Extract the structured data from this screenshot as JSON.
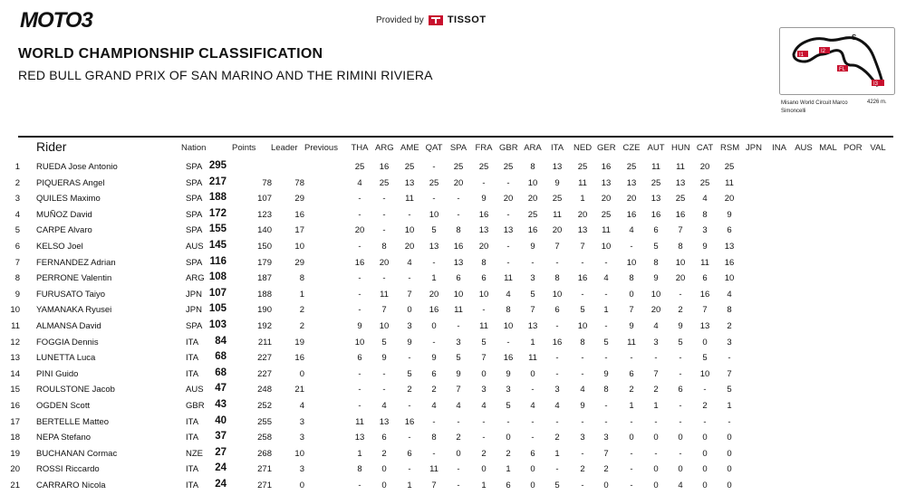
{
  "header": {
    "logo_text": "MOTO3",
    "provided_by": "Provided by",
    "sponsor": "TISSOT",
    "title": "WORLD CHAMPIONSHIP CLASSIFICATION",
    "subtitle": "RED BULL GRAND PRIX OF SAN MARINO AND THE RIMINI RIVIERA"
  },
  "track": {
    "name": "Misano World Circuit Marco Simoncelli",
    "length": "4226 m.",
    "sector_labels": [
      "S",
      "I1",
      "I2",
      "FL",
      "I3"
    ]
  },
  "table": {
    "columns": {
      "rider": "Rider",
      "nation": "Nation",
      "points": "Points",
      "leader": "Leader",
      "previous": "Previous"
    },
    "races": [
      "THA",
      "ARG",
      "AME",
      "QAT",
      "SPA",
      "FRA",
      "GBR",
      "ARA",
      "ITA",
      "NED",
      "GER",
      "CZE",
      "AUT",
      "HUN",
      "CAT",
      "RSM",
      "JPN",
      "INA",
      "AUS",
      "MAL",
      "POR",
      "VAL"
    ],
    "rows": [
      {
        "pos": "1",
        "rider": "RUEDA Jose Antonio",
        "nation": "SPA",
        "points": "295",
        "leader": "",
        "previous": "",
        "results": [
          "25",
          "16",
          "25",
          "-",
          "25",
          "25",
          "25",
          "8",
          "13",
          "25",
          "16",
          "25",
          "11",
          "11",
          "20",
          "25"
        ]
      },
      {
        "pos": "2",
        "rider": "PIQUERAS Angel",
        "nation": "SPA",
        "points": "217",
        "leader": "78",
        "previous": "78",
        "results": [
          "4",
          "25",
          "13",
          "25",
          "20",
          "-",
          "-",
          "10",
          "9",
          "11",
          "13",
          "13",
          "25",
          "13",
          "25",
          "11"
        ]
      },
      {
        "pos": "3",
        "rider": "QUILES Maximo",
        "nation": "SPA",
        "points": "188",
        "leader": "107",
        "previous": "29",
        "results": [
          "-",
          "-",
          "11",
          "-",
          "-",
          "9",
          "20",
          "20",
          "25",
          "1",
          "20",
          "20",
          "13",
          "25",
          "4",
          "20"
        ]
      },
      {
        "pos": "4",
        "rider": "MUÑOZ David",
        "nation": "SPA",
        "points": "172",
        "leader": "123",
        "previous": "16",
        "results": [
          "-",
          "-",
          "-",
          "10",
          "-",
          "16",
          "-",
          "25",
          "11",
          "20",
          "25",
          "16",
          "16",
          "16",
          "8",
          "9"
        ]
      },
      {
        "pos": "5",
        "rider": "CARPE Alvaro",
        "nation": "SPA",
        "points": "155",
        "leader": "140",
        "previous": "17",
        "results": [
          "20",
          "-",
          "10",
          "5",
          "8",
          "13",
          "13",
          "16",
          "20",
          "13",
          "11",
          "4",
          "6",
          "7",
          "3",
          "6"
        ]
      },
      {
        "pos": "6",
        "rider": "KELSO Joel",
        "nation": "AUS",
        "points": "145",
        "leader": "150",
        "previous": "10",
        "results": [
          "-",
          "8",
          "20",
          "13",
          "16",
          "20",
          "-",
          "9",
          "7",
          "7",
          "10",
          "-",
          "5",
          "8",
          "9",
          "13"
        ]
      },
      {
        "pos": "7",
        "rider": "FERNANDEZ Adrian",
        "nation": "SPA",
        "points": "116",
        "leader": "179",
        "previous": "29",
        "results": [
          "16",
          "20",
          "4",
          "-",
          "13",
          "8",
          "-",
          "-",
          "-",
          "-",
          "-",
          "10",
          "8",
          "10",
          "11",
          "16"
        ]
      },
      {
        "pos": "8",
        "rider": "PERRONE Valentin",
        "nation": "ARG",
        "points": "108",
        "leader": "187",
        "previous": "8",
        "results": [
          "-",
          "-",
          "-",
          "1",
          "6",
          "6",
          "11",
          "3",
          "8",
          "16",
          "4",
          "8",
          "9",
          "20",
          "6",
          "10"
        ]
      },
      {
        "pos": "9",
        "rider": "FURUSATO Taiyo",
        "nation": "JPN",
        "points": "107",
        "leader": "188",
        "previous": "1",
        "results": [
          "-",
          "11",
          "7",
          "20",
          "10",
          "10",
          "4",
          "5",
          "10",
          "-",
          "-",
          "0",
          "10",
          "-",
          "16",
          "4"
        ]
      },
      {
        "pos": "10",
        "rider": "YAMANAKA Ryusei",
        "nation": "JPN",
        "points": "105",
        "leader": "190",
        "previous": "2",
        "results": [
          "-",
          "7",
          "0",
          "16",
          "11",
          "-",
          "8",
          "7",
          "6",
          "5",
          "1",
          "7",
          "20",
          "2",
          "7",
          "8"
        ]
      },
      {
        "pos": "11",
        "rider": "ALMANSA David",
        "nation": "SPA",
        "points": "103",
        "leader": "192",
        "previous": "2",
        "results": [
          "9",
          "10",
          "3",
          "0",
          "-",
          "11",
          "10",
          "13",
          "-",
          "10",
          "-",
          "9",
          "4",
          "9",
          "13",
          "2"
        ]
      },
      {
        "pos": "12",
        "rider": "FOGGIA Dennis",
        "nation": "ITA",
        "points": "84",
        "leader": "211",
        "previous": "19",
        "results": [
          "10",
          "5",
          "9",
          "-",
          "3",
          "5",
          "-",
          "1",
          "16",
          "8",
          "5",
          "11",
          "3",
          "5",
          "0",
          "3"
        ]
      },
      {
        "pos": "13",
        "rider": "LUNETTA Luca",
        "nation": "ITA",
        "points": "68",
        "leader": "227",
        "previous": "16",
        "results": [
          "6",
          "9",
          "-",
          "9",
          "5",
          "7",
          "16",
          "11",
          "-",
          "-",
          "-",
          "-",
          "-",
          "-",
          "5",
          "-"
        ]
      },
      {
        "pos": "14",
        "rider": "PINI Guido",
        "nation": "ITA",
        "points": "68",
        "leader": "227",
        "previous": "0",
        "results": [
          "-",
          "-",
          "5",
          "6",
          "9",
          "0",
          "9",
          "0",
          "-",
          "-",
          "9",
          "6",
          "7",
          "-",
          "10",
          "7"
        ]
      },
      {
        "pos": "15",
        "rider": "ROULSTONE Jacob",
        "nation": "AUS",
        "points": "47",
        "leader": "248",
        "previous": "21",
        "results": [
          "-",
          "-",
          "2",
          "2",
          "7",
          "3",
          "3",
          "-",
          "3",
          "4",
          "8",
          "2",
          "2",
          "6",
          "-",
          "5"
        ]
      },
      {
        "pos": "16",
        "rider": "OGDEN Scott",
        "nation": "GBR",
        "points": "43",
        "leader": "252",
        "previous": "4",
        "results": [
          "-",
          "4",
          "-",
          "4",
          "4",
          "4",
          "5",
          "4",
          "4",
          "9",
          "-",
          "1",
          "1",
          "-",
          "2",
          "1"
        ]
      },
      {
        "pos": "17",
        "rider": "BERTELLE Matteo",
        "nation": "ITA",
        "points": "40",
        "leader": "255",
        "previous": "3",
        "results": [
          "11",
          "13",
          "16",
          "-",
          "-",
          "-",
          "-",
          "-",
          "-",
          "-",
          "-",
          "-",
          "-",
          "-",
          "-",
          "-"
        ]
      },
      {
        "pos": "18",
        "rider": "NEPA Stefano",
        "nation": "ITA",
        "points": "37",
        "leader": "258",
        "previous": "3",
        "results": [
          "13",
          "6",
          "-",
          "8",
          "2",
          "-",
          "0",
          "-",
          "2",
          "3",
          "3",
          "0",
          "0",
          "0",
          "0",
          "0"
        ]
      },
      {
        "pos": "19",
        "rider": "BUCHANAN Cormac",
        "nation": "NZE",
        "points": "27",
        "leader": "268",
        "previous": "10",
        "results": [
          "1",
          "2",
          "6",
          "-",
          "0",
          "2",
          "2",
          "6",
          "1",
          "-",
          "7",
          "-",
          "-",
          "-",
          "0",
          "0"
        ]
      },
      {
        "pos": "20",
        "rider": "ROSSI Riccardo",
        "nation": "ITA",
        "points": "24",
        "leader": "271",
        "previous": "3",
        "results": [
          "8",
          "0",
          "-",
          "11",
          "-",
          "0",
          "1",
          "0",
          "-",
          "2",
          "2",
          "-",
          "0",
          "0",
          "0",
          "0"
        ]
      },
      {
        "pos": "21",
        "rider": "CARRARO Nicola",
        "nation": "ITA",
        "points": "24",
        "leader": "271",
        "previous": "0",
        "results": [
          "-",
          "0",
          "1",
          "7",
          "-",
          "1",
          "6",
          "0",
          "5",
          "-",
          "0",
          "-",
          "0",
          "4",
          "0",
          "0"
        ]
      }
    ]
  }
}
